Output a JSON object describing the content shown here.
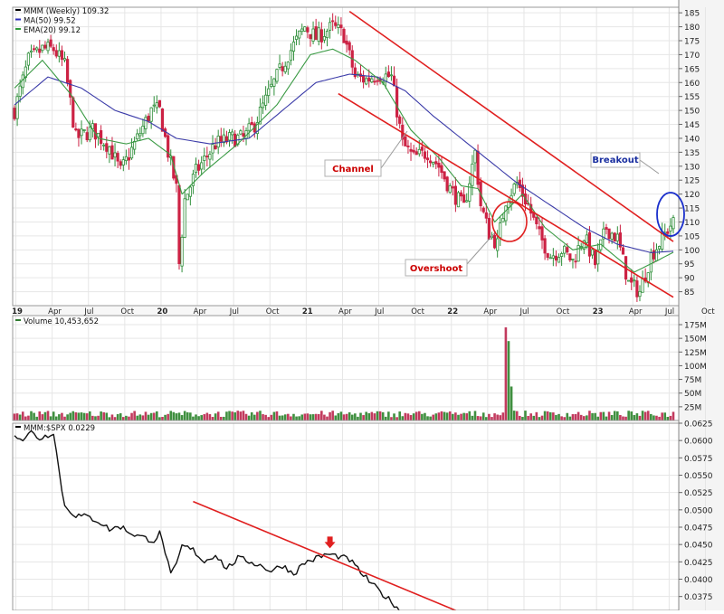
{
  "chart_data": [
    {
      "type": "candlestick",
      "panel": "price",
      "legend": [
        {
          "label": "MMM (Weekly) 109.32",
          "color": "#000000"
        },
        {
          "label": "MA(50) 99.52",
          "color": "#2b2bb8"
        },
        {
          "label": "EMA(20) 99.12",
          "color": "#2f9a3a"
        }
      ],
      "ylim": [
        80,
        187
      ],
      "y_ticks": [
        "185",
        "180",
        "175",
        "170",
        "165",
        "160",
        "155",
        "150",
        "145",
        "140",
        "135",
        "130",
        "125",
        "120",
        "115",
        "110",
        "105",
        "100",
        "95",
        "90",
        "85"
      ],
      "x_ticks": [
        "19",
        "Apr",
        "Jul",
        "Oct",
        "20",
        "Apr",
        "Jul",
        "Oct",
        "21",
        "Apr",
        "Jul",
        "Oct",
        "22",
        "Apr",
        "Jul",
        "Oct",
        "23",
        "Apr",
        "Jul",
        "Oct"
      ],
      "year_ticks": [
        "19",
        "20",
        "21",
        "22",
        "23"
      ],
      "grid": true,
      "close_path": [
        [
          0,
          150
        ],
        [
          5,
          168
        ],
        [
          10,
          172
        ],
        [
          14,
          172
        ],
        [
          18,
          166
        ],
        [
          22,
          140
        ],
        [
          28,
          143
        ],
        [
          34,
          137
        ],
        [
          38,
          128
        ],
        [
          43,
          138
        ],
        [
          49,
          150
        ],
        [
          52,
          150
        ],
        [
          55,
          135
        ],
        [
          58,
          122
        ],
        [
          59,
          95
        ],
        [
          61,
          118
        ],
        [
          65,
          128
        ],
        [
          72,
          138
        ],
        [
          78,
          140
        ],
        [
          82,
          140
        ],
        [
          86,
          145
        ],
        [
          92,
          158
        ],
        [
          98,
          170
        ],
        [
          104,
          180
        ],
        [
          108,
          176
        ],
        [
          114,
          180
        ],
        [
          118,
          177
        ],
        [
          122,
          162
        ],
        [
          126,
          161
        ],
        [
          130,
          163
        ],
        [
          135,
          162
        ],
        [
          139,
          138
        ],
        [
          143,
          133
        ],
        [
          148,
          135
        ],
        [
          152,
          130
        ],
        [
          156,
          122
        ],
        [
          161,
          115
        ],
        [
          165,
          135
        ],
        [
          167,
          116
        ],
        [
          170,
          106
        ],
        [
          173,
          102
        ],
        [
          176,
          118
        ],
        [
          180,
          124
        ],
        [
          184,
          116
        ],
        [
          188,
          105
        ],
        [
          192,
          98
        ],
        [
          196,
          100
        ],
        [
          200,
          96
        ],
        [
          204,
          105
        ],
        [
          208,
          95
        ],
        [
          212,
          108
        ],
        [
          216,
          104
        ],
        [
          220,
          88
        ],
        [
          224,
          85
        ],
        [
          228,
          98
        ],
        [
          232,
          104
        ],
        [
          235,
          109
        ],
        [
          236,
          109.32
        ]
      ],
      "ma50": [
        [
          0,
          152
        ],
        [
          12,
          162
        ],
        [
          24,
          158
        ],
        [
          36,
          150
        ],
        [
          48,
          146
        ],
        [
          58,
          140
        ],
        [
          70,
          138
        ],
        [
          84,
          140
        ],
        [
          96,
          150
        ],
        [
          108,
          160
        ],
        [
          120,
          163
        ],
        [
          130,
          162
        ],
        [
          140,
          157
        ],
        [
          150,
          148
        ],
        [
          160,
          140
        ],
        [
          170,
          132
        ],
        [
          180,
          124
        ],
        [
          192,
          116
        ],
        [
          204,
          108
        ],
        [
          216,
          102
        ],
        [
          228,
          99
        ],
        [
          236,
          99.52
        ]
      ],
      "ema20": [
        [
          0,
          158
        ],
        [
          10,
          168
        ],
        [
          20,
          156
        ],
        [
          30,
          140
        ],
        [
          40,
          138
        ],
        [
          48,
          140
        ],
        [
          56,
          134
        ],
        [
          60,
          120
        ],
        [
          68,
          128
        ],
        [
          80,
          138
        ],
        [
          94,
          152
        ],
        [
          106,
          170
        ],
        [
          114,
          172
        ],
        [
          122,
          168
        ],
        [
          132,
          160
        ],
        [
          142,
          143
        ],
        [
          152,
          133
        ],
        [
          160,
          123
        ],
        [
          166,
          122
        ],
        [
          172,
          110
        ],
        [
          182,
          120
        ],
        [
          190,
          108
        ],
        [
          200,
          100
        ],
        [
          210,
          102
        ],
        [
          222,
          92
        ],
        [
          230,
          96
        ],
        [
          236,
          99.12
        ]
      ],
      "channel_upper": [
        [
          120,
          185.5
        ],
        [
          236,
          103
        ]
      ],
      "channel_lower": [
        [
          116,
          156
        ],
        [
          236,
          83
        ]
      ],
      "annotations": [
        {
          "text": "Channel",
          "color": "#cc0000"
        },
        {
          "text": "Overshoot",
          "color": "#cc0000"
        },
        {
          "text": "Breakout",
          "color": "#1a2fa0"
        }
      ]
    },
    {
      "type": "bar",
      "panel": "volume",
      "legend": [
        {
          "label": "Volume 10,453,652",
          "color": "#2f7a2f"
        }
      ],
      "ylim": [
        0,
        175
      ],
      "y_ticks": [
        "175M",
        "150M",
        "125M",
        "100M",
        "75M",
        "50M",
        "25M"
      ],
      "spikes": [
        [
          176,
          170
        ],
        [
          177,
          145
        ],
        [
          178,
          62
        ],
        [
          179,
          18
        ]
      ],
      "base_range": [
        6,
        18
      ]
    },
    {
      "type": "line",
      "panel": "ratio",
      "legend": [
        {
          "label": "MMM:$SPX 0.0229",
          "color": "#000000"
        }
      ],
      "ylim": [
        0.0355,
        0.0625
      ],
      "y_ticks": [
        "0.0625",
        "0.0600",
        "0.0575",
        "0.0550",
        "0.0525",
        "0.0500",
        "0.0475",
        "0.0450",
        "0.0425",
        "0.0400",
        "0.0375"
      ],
      "series": [
        [
          0,
          0.061
        ],
        [
          3,
          0.0602
        ],
        [
          6,
          0.0612
        ],
        [
          9,
          0.0603
        ],
        [
          12,
          0.0608
        ],
        [
          14,
          0.0613
        ],
        [
          16,
          0.0555
        ],
        [
          18,
          0.0505
        ],
        [
          22,
          0.0492
        ],
        [
          26,
          0.049
        ],
        [
          30,
          0.0484
        ],
        [
          34,
          0.0472
        ],
        [
          38,
          0.0476
        ],
        [
          42,
          0.0466
        ],
        [
          46,
          0.046
        ],
        [
          50,
          0.0456
        ],
        [
          52,
          0.0466
        ],
        [
          54,
          0.044
        ],
        [
          56,
          0.0405
        ],
        [
          58,
          0.042
        ],
        [
          60,
          0.0448
        ],
        [
          64,
          0.0442
        ],
        [
          68,
          0.0425
        ],
        [
          72,
          0.0436
        ],
        [
          76,
          0.0415
        ],
        [
          80,
          0.043
        ],
        [
          84,
          0.0426
        ],
        [
          88,
          0.042
        ],
        [
          92,
          0.0412
        ],
        [
          96,
          0.042
        ],
        [
          100,
          0.0408
        ],
        [
          104,
          0.0424
        ],
        [
          108,
          0.043
        ],
        [
          112,
          0.0436
        ],
        [
          116,
          0.0433
        ],
        [
          120,
          0.0428
        ],
        [
          124,
          0.041
        ],
        [
          128,
          0.0393
        ],
        [
          132,
          0.0378
        ],
        [
          136,
          0.0364
        ],
        [
          138,
          0.0356
        ]
      ],
      "trendline": [
        [
          64,
          0.0512
        ],
        [
          164,
          0.0345
        ]
      ],
      "marker_at": [
        113,
        0.0438
      ]
    }
  ]
}
